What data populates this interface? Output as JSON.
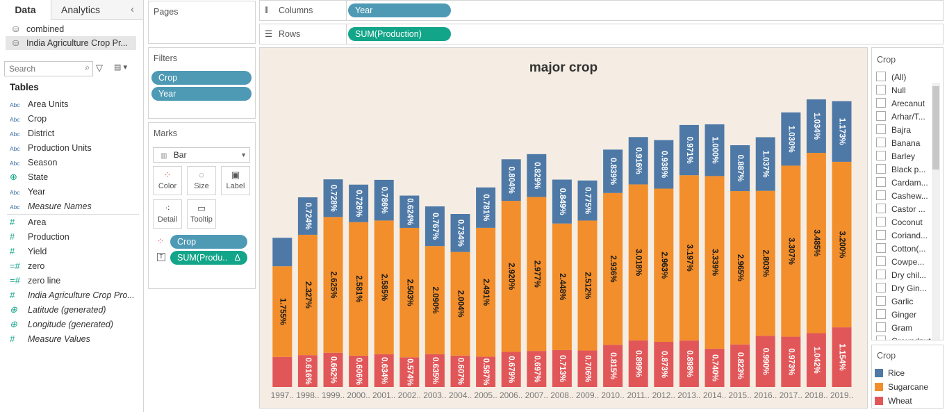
{
  "datapane": {
    "tabs": [
      "Data",
      "Analytics"
    ],
    "collapse_icon": "chevron-left-icon",
    "sources": [
      "combined",
      "India Agriculture Crop Pr..."
    ],
    "search_placeholder": "Search",
    "tables_heading": "Tables",
    "dimensions": [
      {
        "type": "Abc",
        "name": "Area Units"
      },
      {
        "type": "Abc",
        "name": "Crop"
      },
      {
        "type": "Abc",
        "name": "District"
      },
      {
        "type": "Abc",
        "name": "Production Units"
      },
      {
        "type": "Abc",
        "name": "Season"
      },
      {
        "type": "globe",
        "name": "State"
      },
      {
        "type": "Abc",
        "name": "Year"
      },
      {
        "type": "Abc",
        "name": "Measure Names"
      }
    ],
    "measures": [
      {
        "type": "#",
        "name": "Area"
      },
      {
        "type": "#",
        "name": "Production"
      },
      {
        "type": "#",
        "name": "Yield"
      },
      {
        "type": "=#",
        "name": "zero"
      },
      {
        "type": "=#",
        "name": "zero line"
      },
      {
        "type": "#",
        "name": "India Agriculture Crop Pro..."
      },
      {
        "type": "globe",
        "name": "Latitude (generated)"
      },
      {
        "type": "globe",
        "name": "Longitude (generated)"
      },
      {
        "type": "#",
        "name": "Measure Values"
      }
    ]
  },
  "pages": {
    "title": "Pages"
  },
  "filters": {
    "title": "Filters",
    "pills": [
      "Crop",
      "Year"
    ]
  },
  "marks": {
    "title": "Marks",
    "type": "Bar",
    "buttons": [
      "Color",
      "Size",
      "Label",
      "Detail",
      "Tooltip"
    ],
    "pills": [
      "Crop",
      "SUM(Produ.."
    ],
    "delta_glyph": "Δ"
  },
  "columns": {
    "label": "Columns",
    "pill": "Year"
  },
  "rows": {
    "label": "Rows",
    "pill": "SUM(Production)"
  },
  "colors": {
    "Rice": "#4e79a7",
    "Sugarcane": "#f28e2b",
    "Wheat": "#e15759",
    "dim_pill": "#4e9ab5",
    "measure_pill": "#13a589",
    "chart_bg": "#f5ede3"
  },
  "filter_card": {
    "title": "Crop",
    "items": [
      "(All)",
      "Null",
      "Arecanut",
      "Arhar/T...",
      "Bajra",
      "Banana",
      "Barley",
      "Black p...",
      "Cardam...",
      "Cashew...",
      "Castor ...",
      "Coconut",
      "Coriand...",
      "Cotton(...",
      "Cowpe...",
      "Dry chil...",
      "Dry Gin...",
      "Garlic",
      "Ginger",
      "Gram",
      "Groundnut"
    ]
  },
  "legend": {
    "title": "Crop",
    "items": [
      "Rice",
      "Sugarcane",
      "Wheat"
    ]
  },
  "chart_data": {
    "type": "bar",
    "stacked": true,
    "title": "major crop",
    "xlabel": "",
    "ylabel": "",
    "categories": [
      "1997..",
      "1998..",
      "1999..",
      "2000..",
      "2001..",
      "2002..",
      "2003..",
      "2004..",
      "2005..",
      "2006..",
      "2007..",
      "2008..",
      "2009..",
      "2010..",
      "2011..",
      "2012..",
      "2013..",
      "2014..",
      "2015..",
      "2016..",
      "2017..",
      "2018..",
      "2019.."
    ],
    "series": [
      {
        "name": "Wheat",
        "values": [
          0.58,
          0.616,
          0.662,
          0.606,
          0.634,
          0.574,
          0.635,
          0.607,
          0.587,
          0.679,
          0.697,
          0.713,
          0.706,
          0.815,
          0.899,
          0.873,
          0.898,
          0.74,
          0.823,
          0.99,
          0.973,
          1.042,
          1.154
        ],
        "labels": [
          "",
          "0.616%",
          "0.662%",
          "0.606%",
          "0.634%",
          "0.574%",
          "0.635%",
          "0.607%",
          "0.587%",
          "0.679%",
          "0.697%",
          "0.713%",
          "0.706%",
          "0.815%",
          "0.899%",
          "0.873%",
          "0.898%",
          "0.740%",
          "0.823%",
          "0.990%",
          "0.973%",
          "1.042%",
          "1.154%"
        ]
      },
      {
        "name": "Sugarcane",
        "values": [
          1.755,
          2.327,
          2.625,
          2.581,
          2.585,
          2.503,
          2.09,
          2.004,
          2.491,
          2.92,
          2.977,
          2.448,
          2.512,
          2.936,
          3.018,
          2.963,
          3.197,
          3.339,
          2.965,
          2.803,
          3.307,
          3.485,
          3.2
        ],
        "labels": [
          "1.755%",
          "2.327%",
          "2.625%",
          "2.581%",
          "2.585%",
          "2.503%",
          "2.090%",
          "2.004%",
          "2.491%",
          "2.920%",
          "2.977%",
          "2.448%",
          "2.512%",
          "2.936%",
          "3.018%",
          "2.963%",
          "3.197%",
          "3.339%",
          "2.965%",
          "2.803%",
          "3.307%",
          "3.485%",
          "3.200%"
        ]
      },
      {
        "name": "Rice",
        "values": [
          0.55,
          0.724,
          0.728,
          0.726,
          0.786,
          0.624,
          0.767,
          0.734,
          0.781,
          0.804,
          0.829,
          0.849,
          0.775,
          0.839,
          0.916,
          0.938,
          0.971,
          1.0,
          0.887,
          1.037,
          1.03,
          1.034,
          1.173
        ],
        "labels": [
          "",
          "0.724%",
          "0.728%",
          "0.726%",
          "0.786%",
          "0.624%",
          "0.767%",
          "0.734%",
          "0.781%",
          "0.804%",
          "0.829%",
          "0.849%",
          "0.775%",
          "0.839%",
          "0.916%",
          "0.938%",
          "0.971%",
          "1.000%",
          "0.887%",
          "1.037%",
          "1.030%",
          "1.034%",
          "1.173%"
        ]
      }
    ],
    "ylim": [
      0,
      5.75
    ],
    "legend": "right"
  }
}
